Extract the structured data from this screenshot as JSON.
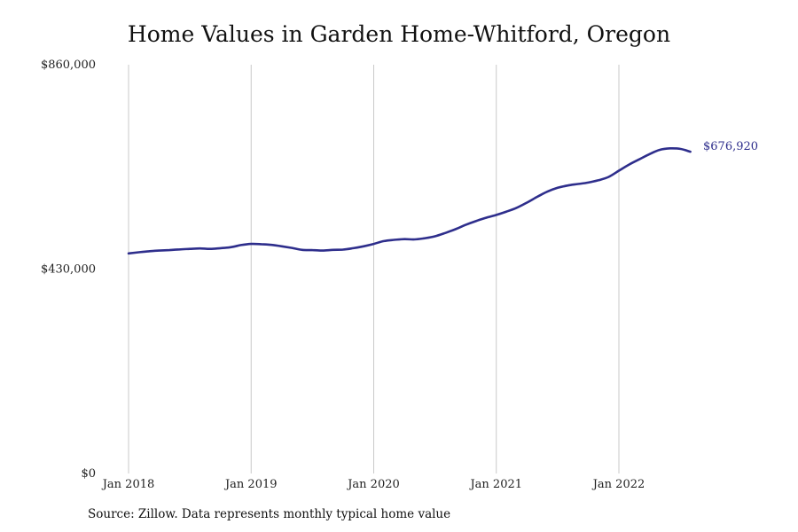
{
  "title": "Home Values in Garden Home-Whitford, Oregon",
  "source": "Source: Zillow. Data represents monthly typical home value",
  "colors": {
    "line": "#2e2e8c",
    "grid": "#c9c9c9"
  },
  "chart_data": {
    "type": "line",
    "title": "Home Values in Garden Home-Whitford, Oregon",
    "xlabel": "",
    "ylabel": "",
    "ylim": [
      0,
      860000
    ],
    "y_ticks": [
      0,
      430000,
      860000
    ],
    "y_tick_labels": [
      "$0",
      "$430,000",
      "$860,000"
    ],
    "x_tick_labels": [
      "Jan 2018",
      "Jan 2019",
      "Jan 2020",
      "Jan 2021",
      "Jan 2022"
    ],
    "x_tick_dates": [
      "2018-01",
      "2019-01",
      "2020-01",
      "2021-01",
      "2022-01"
    ],
    "grid": "vertical",
    "end_label": "$676,920",
    "series": [
      {
        "x": [
          "2018-01",
          "2018-02",
          "2018-03",
          "2018-04",
          "2018-05",
          "2018-06",
          "2018-07",
          "2018-08",
          "2018-09",
          "2018-10",
          "2018-11",
          "2018-12",
          "2019-01",
          "2019-02",
          "2019-03",
          "2019-04",
          "2019-05",
          "2019-06",
          "2019-07",
          "2019-08",
          "2019-09",
          "2019-10",
          "2019-11",
          "2019-12",
          "2020-01",
          "2020-02",
          "2020-03",
          "2020-04",
          "2020-05",
          "2020-06",
          "2020-07",
          "2020-08",
          "2020-09",
          "2020-10",
          "2020-11",
          "2020-12",
          "2021-01",
          "2021-02",
          "2021-03",
          "2021-04",
          "2021-05",
          "2021-06",
          "2021-07",
          "2021-08",
          "2021-09",
          "2021-10",
          "2021-11",
          "2021-12",
          "2022-01",
          "2022-02",
          "2022-03",
          "2022-04",
          "2022-05",
          "2022-06",
          "2022-07",
          "2022-08"
        ],
        "values": [
          463000,
          465500,
          467500,
          469000,
          470000,
          471500,
          472500,
          473500,
          472500,
          474000,
          476000,
          480500,
          483000,
          482500,
          481000,
          478000,
          474500,
          470500,
          470000,
          469000,
          470500,
          471000,
          474000,
          478000,
          483000,
          489000,
          491500,
          493000,
          492500,
          495000,
          499000,
          506000,
          514000,
          523000,
          531000,
          538000,
          544000,
          551000,
          559000,
          570000,
          582000,
          593000,
          601000,
          606000,
          609000,
          612000,
          617000,
          624000,
          637000,
          650000,
          661000,
          672000,
          681000,
          684000,
          683000,
          676920
        ]
      }
    ]
  }
}
